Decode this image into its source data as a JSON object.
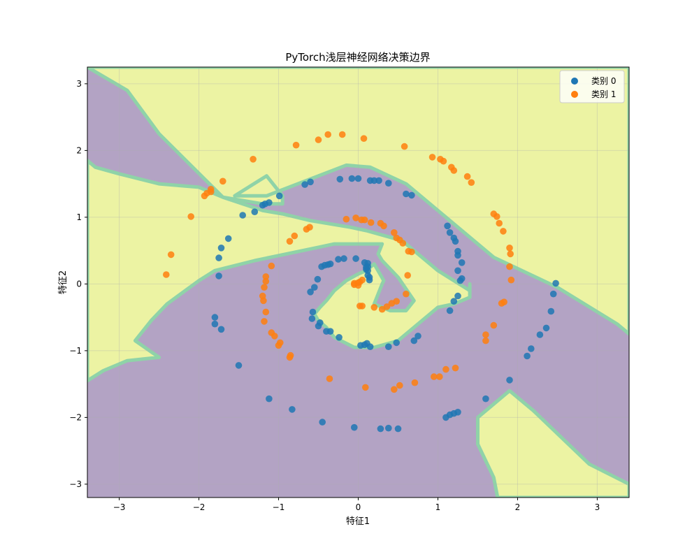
{
  "chart_data": {
    "type": "scatter",
    "title": "PyTorch浅层神经网络决策边界",
    "xlabel": "特征1",
    "ylabel": "特征2",
    "xlim": [
      -3.4,
      3.4
    ],
    "ylim": [
      -3.2,
      3.25
    ],
    "xticks": [
      -3,
      -2,
      -1,
      0,
      1,
      2,
      3
    ],
    "yticks": [
      -3,
      -2,
      -1,
      0,
      1,
      2,
      3
    ],
    "grid": true,
    "legend_position": "top-right",
    "background_regions": {
      "colors": {
        "class0": "#b3a3c4",
        "class1": "#ecf3a3",
        "boundary": "#8fd3a8"
      },
      "class1_regions": [
        [
          [
            -3.4,
            3.25
          ],
          [
            -3.4,
            3.25
          ],
          [
            -3.25,
            3.25
          ],
          [
            3.4,
            3.25
          ],
          [
            3.4,
            -0.75
          ],
          [
            3.25,
            -0.6
          ],
          [
            2.5,
            -0.05
          ],
          [
            1.7,
            0.4
          ],
          [
            0.6,
            1.5
          ],
          [
            0.15,
            1.75
          ],
          [
            -0.15,
            1.78
          ],
          [
            -1.15,
            1.32
          ],
          [
            -1.55,
            1.32
          ],
          [
            -1.15,
            1.62
          ],
          [
            -0.95,
            1.32
          ],
          [
            -0.95,
            1.2
          ],
          [
            -1.2,
            1.2
          ],
          [
            -1.7,
            1.3
          ],
          [
            -2.5,
            2.25
          ],
          [
            -2.9,
            2.9
          ]
        ],
        [
          [
            -3.4,
            1.85
          ],
          [
            -3.3,
            1.75
          ],
          [
            -3.0,
            1.65
          ],
          [
            -2.5,
            1.5
          ],
          [
            -2.0,
            1.45
          ],
          [
            -1.7,
            1.3
          ],
          [
            -1.2,
            1.1
          ],
          [
            -0.95,
            1.05
          ],
          [
            -0.6,
            0.95
          ],
          [
            -0.1,
            0.85
          ],
          [
            0.1,
            0.8
          ],
          [
            0.55,
            0.65
          ],
          [
            0.75,
            0.45
          ],
          [
            1.0,
            0.2
          ],
          [
            1.4,
            -0.1
          ],
          [
            1.4,
            0.0
          ],
          [
            1.4,
            -0.2
          ],
          [
            1.2,
            -0.3
          ],
          [
            1.0,
            -0.35
          ],
          [
            0.9,
            -0.45
          ],
          [
            0.75,
            -0.6
          ],
          [
            0.5,
            -0.85
          ],
          [
            0.2,
            -0.95
          ],
          [
            0.05,
            -0.95
          ],
          [
            -0.05,
            -0.95
          ],
          [
            -0.3,
            -0.8
          ],
          [
            -0.4,
            -0.65
          ],
          [
            -0.5,
            -0.55
          ],
          [
            -0.55,
            -0.45
          ],
          [
            -0.48,
            -0.35
          ],
          [
            -0.4,
            -0.25
          ],
          [
            -0.3,
            -0.1
          ],
          [
            -0.15,
            0.05
          ],
          [
            0.0,
            0.15
          ],
          [
            0.1,
            0.2
          ],
          [
            0.2,
            0.3
          ],
          [
            0.32,
            0.05
          ],
          [
            0.3,
            0.0
          ],
          [
            0.2,
            -0.3
          ],
          [
            0.4,
            -0.4
          ],
          [
            0.6,
            -0.4
          ],
          [
            0.7,
            -0.25
          ],
          [
            0.5,
            0.1
          ],
          [
            0.3,
            0.35
          ],
          [
            0.25,
            0.45
          ],
          [
            0.3,
            0.6
          ],
          [
            0.0,
            0.6
          ],
          [
            -0.3,
            0.6
          ],
          [
            -0.5,
            0.55
          ],
          [
            -0.9,
            0.45
          ],
          [
            -1.3,
            0.35
          ],
          [
            -1.8,
            0.2
          ],
          [
            -2.0,
            0.05
          ],
          [
            -2.4,
            -0.3
          ],
          [
            -2.6,
            -0.55
          ],
          [
            -2.8,
            -0.85
          ],
          [
            -2.5,
            -1.1
          ],
          [
            -2.9,
            -1.15
          ],
          [
            -3.2,
            -1.3
          ],
          [
            -3.4,
            -1.45
          ]
        ],
        [
          [
            1.5,
            -2.0
          ],
          [
            1.9,
            -1.6
          ],
          [
            2.2,
            -1.9
          ],
          [
            2.9,
            -2.7
          ],
          [
            3.4,
            -3.0
          ],
          [
            3.4,
            -3.2
          ],
          [
            1.75,
            -3.2
          ],
          [
            1.7,
            -2.9
          ],
          [
            1.5,
            -2.4
          ]
        ]
      ]
    },
    "series": [
      {
        "name": "类别 0",
        "color": "#1f77b4",
        "points": [
          [
            -1.75,
            0.12
          ],
          [
            -1.8,
            -0.5
          ],
          [
            -1.8,
            -0.6
          ],
          [
            -1.72,
            -0.68
          ],
          [
            -1.5,
            -1.22
          ],
          [
            -1.12,
            -1.72
          ],
          [
            -0.83,
            -1.88
          ],
          [
            -0.45,
            -2.07
          ],
          [
            -0.05,
            -2.15
          ],
          [
            0.28,
            -2.17
          ],
          [
            0.38,
            -2.16
          ],
          [
            0.5,
            -2.17
          ],
          [
            1.1,
            -2.0
          ],
          [
            1.15,
            -1.96
          ],
          [
            1.2,
            -1.94
          ],
          [
            1.25,
            -1.92
          ],
          [
            1.6,
            -1.72
          ],
          [
            1.9,
            -1.44
          ],
          [
            2.12,
            -1.08
          ],
          [
            2.17,
            -0.97
          ],
          [
            2.28,
            -0.76
          ],
          [
            2.36,
            -0.66
          ],
          [
            2.42,
            -0.41
          ],
          [
            2.45,
            -0.15
          ],
          [
            2.48,
            0.01
          ],
          [
            1.28,
            0.05
          ],
          [
            1.3,
            0.08
          ],
          [
            1.25,
            0.2
          ],
          [
            1.3,
            0.32
          ],
          [
            1.25,
            0.43
          ],
          [
            1.25,
            0.49
          ],
          [
            1.22,
            0.64
          ],
          [
            1.2,
            0.69
          ],
          [
            1.15,
            0.77
          ],
          [
            1.12,
            0.87
          ],
          [
            1.25,
            -0.18
          ],
          [
            1.2,
            -0.26
          ],
          [
            1.15,
            -0.4
          ],
          [
            0.75,
            -0.78
          ],
          [
            0.7,
            -0.85
          ],
          [
            0.48,
            -0.88
          ],
          [
            0.38,
            -0.94
          ],
          [
            0.15,
            -0.94
          ],
          [
            0.11,
            -0.89
          ],
          [
            0.08,
            -0.91
          ],
          [
            0.03,
            -0.92
          ],
          [
            -0.24,
            -0.8
          ],
          [
            -0.35,
            -0.71
          ],
          [
            -0.4,
            -0.71
          ],
          [
            -0.48,
            -0.58
          ],
          [
            -0.5,
            -0.63
          ],
          [
            -0.58,
            -0.52
          ],
          [
            -0.57,
            -0.42
          ],
          [
            -0.6,
            -0.12
          ],
          [
            -0.55,
            -0.05
          ],
          [
            -0.51,
            0.07
          ],
          [
            -0.46,
            0.26
          ],
          [
            -0.42,
            0.28
          ],
          [
            -0.38,
            0.29
          ],
          [
            -0.35,
            0.3
          ],
          [
            -0.25,
            0.37
          ],
          [
            -0.18,
            0.38
          ],
          [
            -0.03,
            0.38
          ],
          [
            0.08,
            0.32
          ],
          [
            0.12,
            0.31
          ],
          [
            0.1,
            0.25
          ],
          [
            0.1,
            0.22
          ],
          [
            0.12,
            0.26
          ],
          [
            0.12,
            0.2
          ],
          [
            0.14,
            0.1
          ],
          [
            0.12,
            0.13
          ],
          [
            0.14,
            0.06
          ],
          [
            -0.6,
            1.53
          ],
          [
            -0.67,
            1.49
          ],
          [
            -0.23,
            1.57
          ],
          [
            -0.08,
            1.58
          ],
          [
            0.0,
            1.58
          ],
          [
            0.15,
            1.55
          ],
          [
            0.2,
            1.55
          ],
          [
            0.26,
            1.55
          ],
          [
            0.38,
            1.51
          ],
          [
            0.6,
            1.35
          ],
          [
            0.67,
            1.33
          ],
          [
            -1.45,
            1.03
          ],
          [
            -1.3,
            1.08
          ],
          [
            -1.2,
            1.18
          ],
          [
            -1.17,
            1.2
          ],
          [
            -1.12,
            1.22
          ],
          [
            -0.99,
            1.32
          ],
          [
            -1.63,
            0.68
          ],
          [
            -1.72,
            0.54
          ],
          [
            -1.75,
            0.39
          ]
        ]
      },
      {
        "name": "类别 1",
        "color": "#ff7f0e",
        "points": [
          [
            -2.35,
            0.44
          ],
          [
            -2.41,
            0.14
          ],
          [
            -2.1,
            1.01
          ],
          [
            -1.93,
            1.32
          ],
          [
            -1.9,
            1.36
          ],
          [
            -1.85,
            1.38
          ],
          [
            -1.85,
            1.42
          ],
          [
            -1.7,
            1.54
          ],
          [
            -1.32,
            1.87
          ],
          [
            -0.78,
            2.08
          ],
          [
            -0.5,
            2.16
          ],
          [
            -0.38,
            2.24
          ],
          [
            -0.2,
            2.24
          ],
          [
            0.07,
            2.18
          ],
          [
            0.58,
            2.06
          ],
          [
            0.93,
            1.9
          ],
          [
            1.03,
            1.87
          ],
          [
            1.07,
            1.84
          ],
          [
            1.17,
            1.75
          ],
          [
            1.2,
            1.7
          ],
          [
            1.37,
            1.61
          ],
          [
            1.42,
            1.52
          ],
          [
            1.7,
            1.05
          ],
          [
            1.74,
            1.01
          ],
          [
            1.77,
            0.91
          ],
          [
            1.82,
            0.79
          ],
          [
            1.9,
            0.54
          ],
          [
            1.91,
            0.45
          ],
          [
            1.9,
            0.26
          ],
          [
            1.92,
            0.06
          ],
          [
            1.8,
            -0.29
          ],
          [
            1.83,
            -0.27
          ],
          [
            1.7,
            -0.62
          ],
          [
            1.6,
            -0.76
          ],
          [
            1.6,
            -0.85
          ],
          [
            1.22,
            -1.26
          ],
          [
            1.1,
            -1.28
          ],
          [
            1.02,
            -1.39
          ],
          [
            0.95,
            -1.39
          ],
          [
            0.71,
            -1.48
          ],
          [
            0.52,
            -1.52
          ],
          [
            0.45,
            -1.58
          ],
          [
            0.09,
            -1.55
          ],
          [
            -0.36,
            -1.42
          ],
          [
            -0.85,
            -1.07
          ],
          [
            -0.86,
            -1.1
          ],
          [
            -0.98,
            -0.88
          ],
          [
            -1.0,
            -0.92
          ],
          [
            -1.05,
            -0.78
          ],
          [
            -1.09,
            -0.73
          ],
          [
            -1.18,
            -0.56
          ],
          [
            -1.16,
            -0.42
          ],
          [
            -1.2,
            -0.18
          ],
          [
            -1.19,
            -0.25
          ],
          [
            -1.18,
            -0.05
          ],
          [
            -1.16,
            0.04
          ],
          [
            -1.16,
            0.11
          ],
          [
            -1.09,
            0.27
          ],
          [
            -0.86,
            0.64
          ],
          [
            -0.8,
            0.72
          ],
          [
            -0.65,
            0.82
          ],
          [
            -0.61,
            0.85
          ],
          [
            -0.15,
            0.97
          ],
          [
            -0.03,
            0.99
          ],
          [
            0.04,
            0.96
          ],
          [
            0.08,
            0.96
          ],
          [
            0.16,
            0.92
          ],
          [
            0.28,
            0.91
          ],
          [
            0.32,
            0.87
          ],
          [
            0.45,
            0.77
          ],
          [
            0.48,
            0.69
          ],
          [
            0.52,
            0.66
          ],
          [
            0.56,
            0.61
          ],
          [
            0.63,
            0.49
          ],
          [
            0.67,
            0.48
          ],
          [
            0.62,
            0.13
          ],
          [
            0.6,
            -0.15
          ],
          [
            0.48,
            -0.26
          ],
          [
            0.42,
            -0.29
          ],
          [
            0.36,
            -0.34
          ],
          [
            0.3,
            -0.38
          ],
          [
            0.2,
            -0.35
          ],
          [
            0.05,
            -0.33
          ],
          [
            0.02,
            -0.33
          ],
          [
            0.0,
            -0.02
          ],
          [
            -0.05,
            -0.01
          ],
          [
            -0.05,
            0.01
          ],
          [
            0.0,
            0.02
          ],
          [
            0.02,
            0.03
          ],
          [
            0.05,
            0.06
          ]
        ]
      }
    ]
  }
}
